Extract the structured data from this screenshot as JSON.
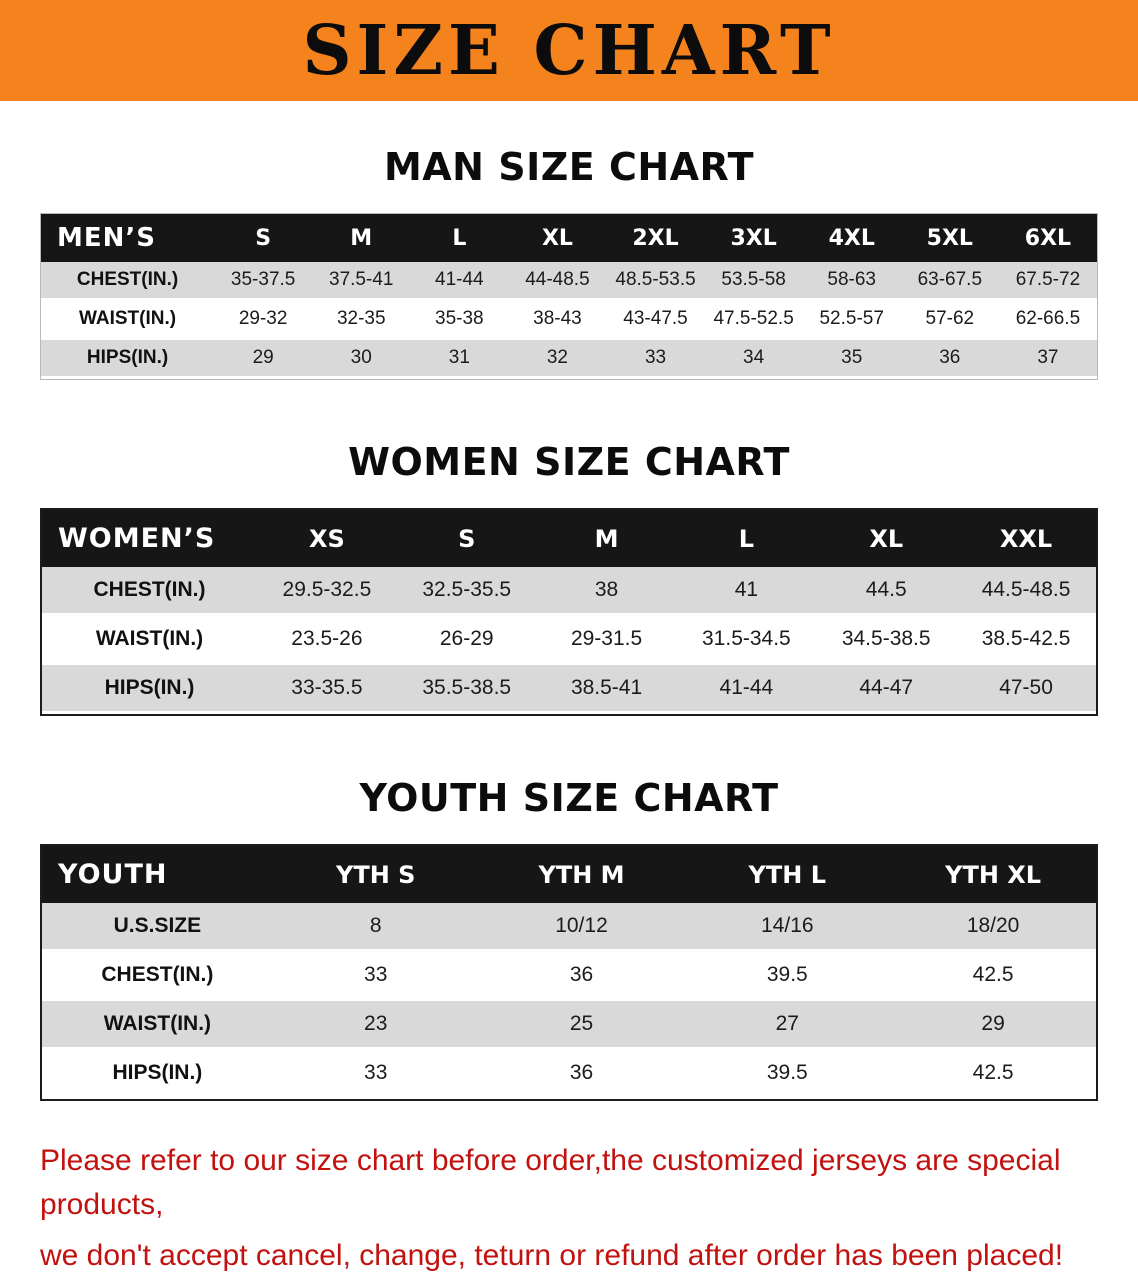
{
  "banner": {
    "title": "SIZE CHART"
  },
  "colors": {
    "banner_bg": "#F5831D",
    "table_header_bg": "#161616",
    "row_alt_bg": "#D9D9D9",
    "footer_text": "#C1120F"
  },
  "sections": [
    {
      "id": "men",
      "heading": "MAN SIZE CHART",
      "table": {
        "header": [
          "MEN’S",
          "S",
          "M",
          "L",
          "XL",
          "2XL",
          "3XL",
          "4XL",
          "5XL",
          "6XL"
        ],
        "rows": [
          [
            "CHEST(IN.)",
            "35-37.5",
            "37.5-41",
            "41-44",
            "44-48.5",
            "48.5-53.5",
            "53.5-58",
            "58-63",
            "63-67.5",
            "67.5-72"
          ],
          [
            "WAIST(IN.)",
            "29-32",
            "32-35",
            "35-38",
            "38-43",
            "43-47.5",
            "47.5-52.5",
            "52.5-57",
            "57-62",
            "62-66.5"
          ],
          [
            "HIPS(IN.)",
            "29",
            "30",
            "31",
            "32",
            "33",
            "34",
            "35",
            "36",
            "37"
          ]
        ]
      }
    },
    {
      "id": "women",
      "heading": "WOMEN SIZE CHART",
      "table": {
        "header": [
          "WOMEN’S",
          "XS",
          "S",
          "M",
          "L",
          "XL",
          "XXL"
        ],
        "rows": [
          [
            "CHEST(IN.)",
            "29.5-32.5",
            "32.5-35.5",
            "38",
            "41",
            "44.5",
            "44.5-48.5"
          ],
          [
            "WAIST(IN.)",
            "23.5-26",
            "26-29",
            "29-31.5",
            "31.5-34.5",
            "34.5-38.5",
            "38.5-42.5"
          ],
          [
            "HIPS(IN.)",
            "33-35.5",
            "35.5-38.5",
            "38.5-41",
            "41-44",
            "44-47",
            "47-50"
          ]
        ]
      }
    },
    {
      "id": "youth",
      "heading": "YOUTH SIZE CHART",
      "table": {
        "header": [
          "YOUTH",
          "YTH S",
          "YTH M",
          "YTH L",
          "YTH XL"
        ],
        "rows": [
          [
            "U.S.SIZE",
            "8",
            "10/12",
            "14/16",
            "18/20"
          ],
          [
            "CHEST(IN.)",
            "33",
            "36",
            "39.5",
            "42.5"
          ],
          [
            "WAIST(IN.)",
            "23",
            "25",
            "27",
            "29"
          ],
          [
            "HIPS(IN.)",
            "33",
            "36",
            "39.5",
            "42.5"
          ]
        ]
      }
    }
  ],
  "footer": {
    "line1": "Please refer to our size chart before order,the customized jerseys are special products,",
    "line2": "we don't accept cancel, change, teturn or refund after order has been placed!"
  }
}
